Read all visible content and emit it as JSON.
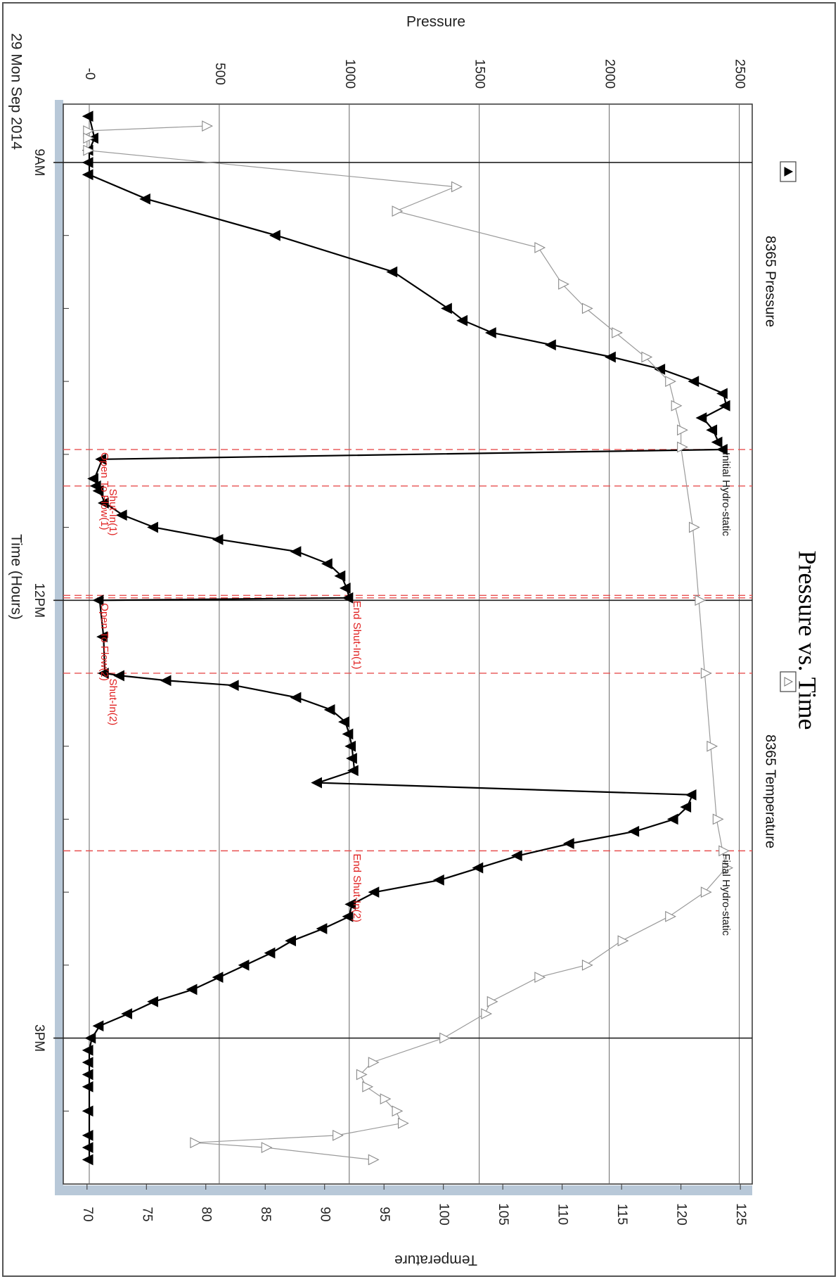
{
  "chart_data": {
    "type": "line",
    "title": "Pressure vs. Time",
    "date_label": "29 Mon Sep 2014",
    "xlabel": "Time (Hours)",
    "x_ticks": [
      "9AM",
      "12PM",
      "3PM"
    ],
    "y_left": {
      "label": "Pressure",
      "ticks": [
        "-0",
        "500",
        "1000",
        "1500",
        "2000",
        "2500"
      ],
      "range": [
        -100,
        2550
      ]
    },
    "y_right": {
      "label": "Temperature",
      "ticks": [
        "70",
        "75",
        "80",
        "85",
        "90",
        "95",
        "100",
        "105",
        "110",
        "115",
        "120",
        "125"
      ],
      "range": [
        68,
        126
      ]
    },
    "grid": true,
    "legend": [
      {
        "name": "8365 Pressure",
        "marker": "filled-triangle"
      },
      {
        "name": "8365 Temperature",
        "marker": "open-triangle"
      }
    ],
    "series": [
      {
        "name": "8365 Pressure",
        "axis": "left",
        "x": [
          "08:41",
          "08:50",
          "08:55",
          "09:00",
          "09:05",
          "09:15",
          "09:30",
          "09:45",
          "10:00",
          "10:05",
          "10:10",
          "10:15",
          "10:20",
          "10:25",
          "10:30",
          "10:35",
          "10:40",
          "10:45",
          "10:50",
          "10:55",
          "10:58",
          "11:02",
          "11:10",
          "11:13",
          "11:15",
          "11:20",
          "11:25",
          "11:30",
          "11:35",
          "11:40",
          "11:45",
          "11:50",
          "11:55",
          "11:59",
          "12:00",
          "12:15",
          "12:30",
          "12:31",
          "12:33",
          "12:35",
          "12:40",
          "12:45",
          "12:50",
          "12:55",
          "13:00",
          "13:05",
          "13:10",
          "13:15",
          "13:20",
          "13:25",
          "13:30",
          "13:35",
          "13:40",
          "13:45",
          "13:50",
          "13:55",
          "14:00",
          "14:05",
          "14:10",
          "14:15",
          "14:20",
          "14:25",
          "14:30",
          "14:35",
          "14:40",
          "14:45",
          "14:50",
          "14:55",
          "15:00",
          "15:05",
          "15:10",
          "15:15",
          "15:20",
          "15:30",
          "15:40",
          "15:45",
          "15:50"
        ],
        "y": [
          0,
          20,
          0,
          0,
          0,
          220,
          720,
          1170,
          1380,
          1440,
          1550,
          1780,
          2010,
          2200,
          2330,
          2440,
          2450,
          2360,
          2400,
          2420,
          2440,
          50,
          20,
          30,
          40,
          60,
          130,
          250,
          500,
          800,
          920,
          970,
          990,
          1000,
          40,
          55,
          60,
          120,
          300,
          560,
          800,
          930,
          985,
          1000,
          1010,
          1015,
          1020,
          880,
          2320,
          2300,
          2250,
          2100,
          1850,
          1650,
          1500,
          1350,
          1100,
          1010,
          1000,
          900,
          780,
          700,
          600,
          500,
          400,
          250,
          150,
          40,
          10,
          0,
          0,
          0,
          0,
          0,
          0,
          0,
          0
        ]
      },
      {
        "name": "8365 Temperature",
        "axis": "right",
        "x": [
          "08:45",
          "08:47",
          "08:50",
          "08:55",
          "09:10",
          "09:20",
          "09:35",
          "09:50",
          "10:00",
          "10:10",
          "10:20",
          "10:30",
          "10:40",
          "10:50",
          "10:57",
          "11:30",
          "12:00",
          "12:30",
          "13:00",
          "13:30",
          "13:43",
          "13:50",
          "14:00",
          "14:10",
          "14:20",
          "14:30",
          "14:35",
          "14:45",
          "14:50",
          "15:00",
          "15:10",
          "15:15",
          "15:20",
          "15:25",
          "15:30",
          "15:35",
          "15:40",
          "15:43",
          "15:45",
          "15:50"
        ],
        "y": [
          80,
          70,
          70,
          70,
          101,
          96,
          108,
          110,
          112,
          114.5,
          117,
          119,
          119.5,
          120,
          120,
          121,
          121.5,
          122,
          122.5,
          123,
          123.5,
          123.8,
          122,
          119,
          115,
          112,
          108,
          104,
          103.5,
          100,
          94,
          93,
          93.5,
          95,
          96,
          96.5,
          91,
          79,
          85,
          94
        ]
      }
    ],
    "event_lines": [
      "10:58",
      "11:13",
      "11:58",
      "11:59",
      "12:30",
      "13:43"
    ],
    "annotations": [
      {
        "text": "Initial Hydro-static",
        "at": "10:58",
        "color": "black"
      },
      {
        "text": "Open To Flow(1)",
        "at": "10:58",
        "color": "red"
      },
      {
        "text": "Shut-In(1)",
        "at": "11:13",
        "color": "red"
      },
      {
        "text": "End Shut-In(1)",
        "at": "11:59",
        "color": "red"
      },
      {
        "text": "Open To Flow(2)",
        "at": "12:00",
        "color": "red"
      },
      {
        "text": "Shut-In(2)",
        "at": "12:31",
        "color": "red"
      },
      {
        "text": "End Shut-In(2)",
        "at": "13:43",
        "color": "red"
      },
      {
        "text": "Final Hydro-static",
        "at": "13:43",
        "color": "black"
      }
    ]
  }
}
